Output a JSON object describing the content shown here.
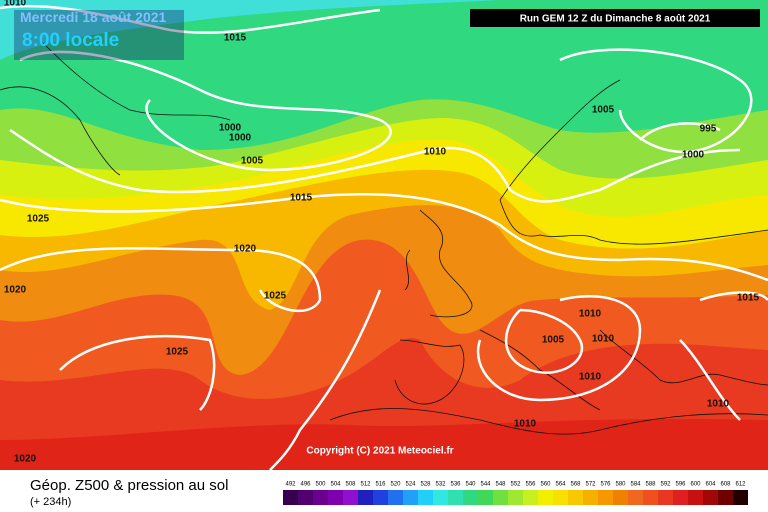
{
  "header": {
    "date": "Mercredi 18 août 2021",
    "time": "8:00 locale",
    "run": "Run GEM 12 Z du Dimanche 8 août 2021"
  },
  "isobar_labels": [
    "1010",
    "1015",
    "1000",
    "1000",
    "1005",
    "1010",
    "1015",
    "1025",
    "1020",
    "1025",
    "1020",
    "1025",
    "1020",
    "1005",
    "995",
    "1000",
    "1015",
    "1010",
    "1010",
    "1005",
    "1010",
    "1010",
    "1010"
  ],
  "copyright": "Copyright (C) 2021 Meteociel.fr",
  "legend": {
    "title": "Géop. Z500 & pression au sol",
    "subtitle": "(+ 234h)",
    "values": [
      492,
      496,
      500,
      504,
      508,
      512,
      516,
      520,
      524,
      528,
      532,
      536,
      540,
      544,
      548,
      552,
      556,
      560,
      564,
      568,
      572,
      576,
      580,
      584,
      588,
      592,
      596,
      600,
      604,
      608,
      612
    ],
    "colors": [
      "#3a0050",
      "#520070",
      "#6a0090",
      "#8000b0",
      "#9010d0",
      "#2020c0",
      "#2040e0",
      "#2070f0",
      "#20a0f8",
      "#20d0f8",
      "#30e8e0",
      "#30e0b0",
      "#30d880",
      "#40d858",
      "#70e040",
      "#a0e830",
      "#c8f020",
      "#f0f000",
      "#f8e000",
      "#f8c800",
      "#f8b000",
      "#f89800",
      "#f08000",
      "#f06820",
      "#f05020",
      "#e83820",
      "#e02020",
      "#c81010",
      "#a00808",
      "#700000",
      "#200000"
    ]
  }
}
